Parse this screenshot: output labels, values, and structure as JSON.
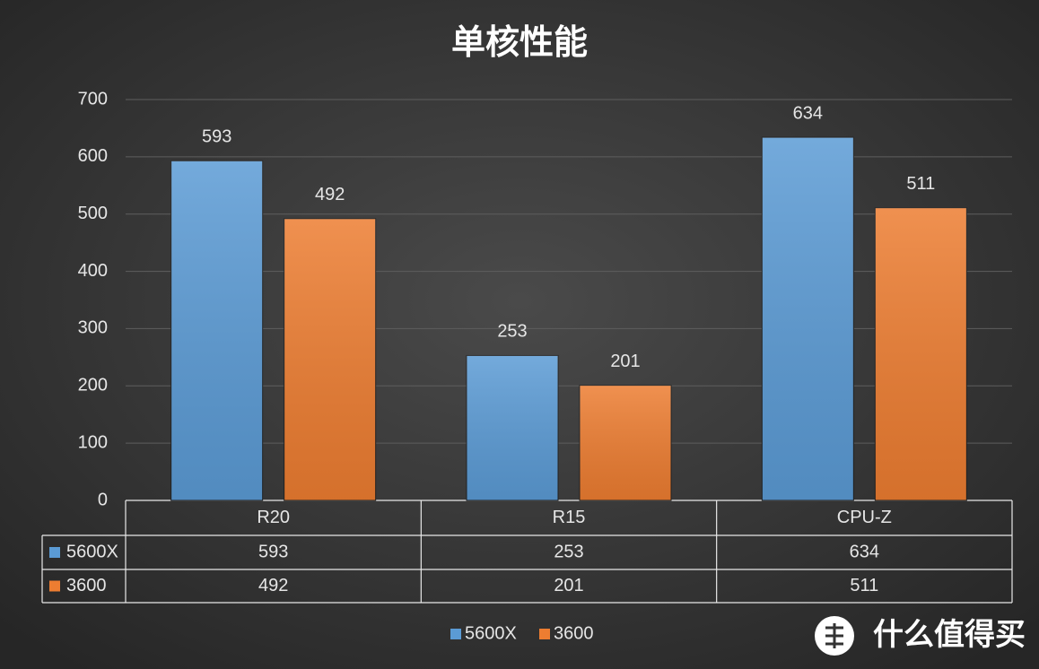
{
  "chart_data": {
    "type": "bar",
    "title": "单核性能",
    "categories": [
      "R20",
      "R15",
      "CPU-Z"
    ],
    "series": [
      {
        "name": "5600X",
        "color": "#5b9bd5",
        "values": [
          593,
          253,
          634
        ]
      },
      {
        "name": "3600",
        "color": "#ed7d31",
        "values": [
          492,
          201,
          511
        ]
      }
    ],
    "ylim": [
      0,
      700
    ],
    "yticks": [
      0,
      100,
      200,
      300,
      400,
      500,
      600,
      700
    ],
    "grid": true,
    "legend": "bottom",
    "data_table": true
  },
  "watermark": "什么值得买"
}
